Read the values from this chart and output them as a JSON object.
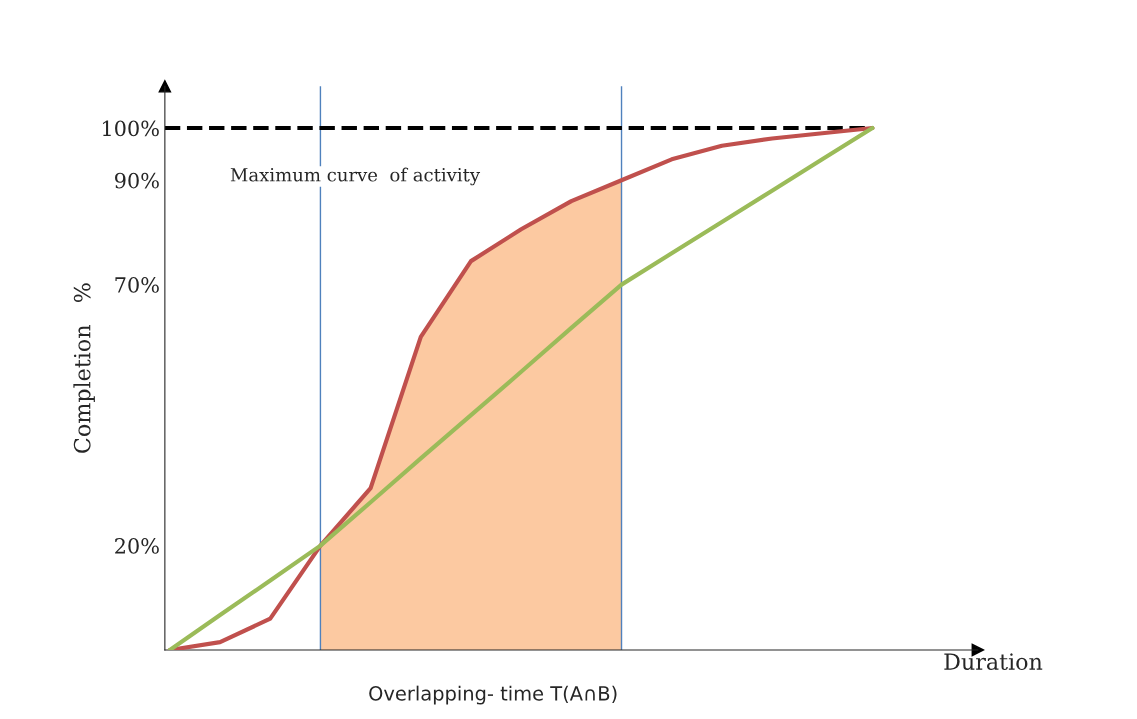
{
  "chart_data": {
    "type": "line",
    "xlabel": "Duration",
    "ylabel": "Completion   %",
    "categories": [
      null,
      null,
      null,
      null,
      null,
      null,
      null,
      null,
      null,
      null,
      null,
      null,
      null,
      null,
      null
    ],
    "series": [
      {
        "type": "area",
        "color": "#fbbf91",
        "values": [
          null,
          null,
          null,
          20,
          31,
          60,
          74.5,
          80.6,
          86,
          90,
          null,
          null,
          null,
          null,
          null
        ]
      },
      {
        "color": "#c0504d",
        "values": [
          0,
          1.5,
          6,
          20,
          31,
          60,
          74.5,
          80.6,
          86,
          90,
          94,
          96.6,
          98,
          99,
          100
        ]
      },
      {
        "color": "#9bbb59",
        "values": [
          0,
          6.7,
          13.3,
          20,
          28.3,
          36.7,
          45,
          53.3,
          61.7,
          70,
          76,
          82,
          88,
          94,
          100
        ]
      }
    ],
    "ylim": [
      0,
      108
    ],
    "yticks": [
      {
        "value": 20,
        "label": "20%"
      },
      {
        "value": 70,
        "label": "70%"
      },
      {
        "value": 90,
        "label": "90%"
      },
      {
        "value": 100,
        "label": "100%"
      }
    ],
    "tick_labels": "y",
    "grid": false,
    "legend": false,
    "ref_lines": [
      {
        "axis": "y",
        "value": 100,
        "color": "#000000",
        "line_style": "dashed"
      }
    ],
    "annotations": [
      "Maximum curve  of activity",
      "Overlapping- time T(A∩B)"
    ]
  }
}
